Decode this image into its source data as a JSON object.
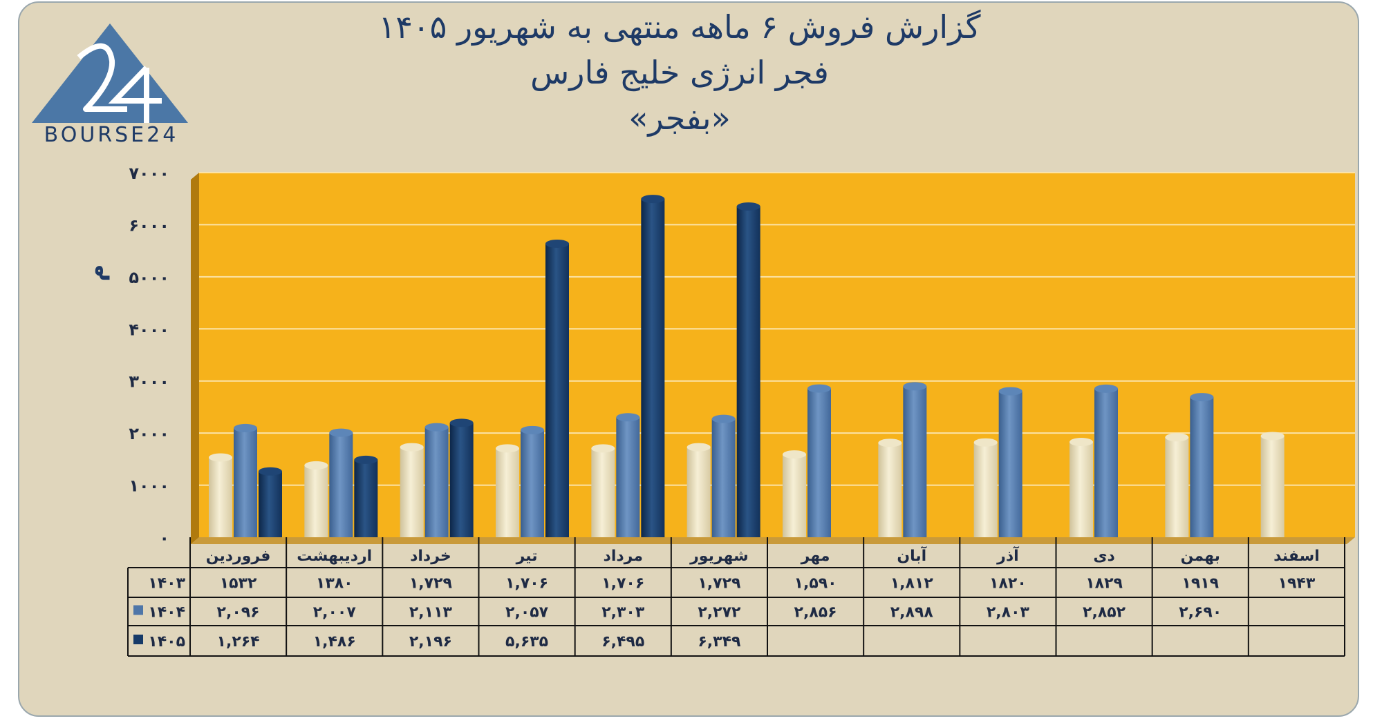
{
  "header": {
    "title_line1": "گزارش  فروش ۶ ماهه منتهی به شهریور ۱۴۰۵",
    "title_line2": "فجر انرژی خلیج فارس",
    "title_line3": "«بفجر»"
  },
  "logo": {
    "text": "BOURSE24",
    "mark": "24",
    "color": "#4b77a6"
  },
  "chart_data": {
    "type": "bar",
    "title": "گزارش  فروش ۶ ماهه منتهی به شهریور ۱۴۰۵",
    "ylabel": "م",
    "ylim": [
      0,
      7000
    ],
    "grid": true,
    "y_ticks": [
      0,
      1000,
      2000,
      3000,
      4000,
      5000,
      6000,
      7000
    ],
    "y_tick_labels": [
      "0",
      "1000",
      "2000",
      "3000",
      "4000",
      "5000",
      "6000",
      "7000"
    ],
    "categories": [
      "فروردین",
      "اردیبهشت",
      "خرداد",
      "تیر",
      "مرداد",
      "شهریور",
      "مهر",
      "آبان",
      "آذر",
      "دی",
      "بهمن",
      "اسفند"
    ],
    "series": [
      {
        "name": "۱۴۰۳",
        "color": "#e8dcb4",
        "values": [
          1532,
          1380,
          1729,
          1706,
          1706,
          1729,
          1590,
          1812,
          1820,
          1829,
          1919,
          1943
        ],
        "labels": [
          "۱۵۳۲",
          "۱۳۸۰",
          "۱,۷۲۹",
          "۱,۷۰۶",
          "۱,۷۰۶",
          "۱,۷۲۹",
          "۱,۵۹۰",
          "۱,۸۱۲",
          "۱۸۲۰",
          "۱۸۲۹",
          "۱۹۱۹",
          "۱۹۴۳"
        ]
      },
      {
        "name": "۱۴۰۴",
        "color": "#4e76a8",
        "values": [
          2096,
          2007,
          2113,
          2057,
          2303,
          2272,
          2856,
          2898,
          2803,
          2852,
          2690,
          null
        ],
        "labels": [
          "۲,۰۹۶",
          "۲,۰۰۷",
          "۲,۱۱۳",
          "۲,۰۵۷",
          "۲,۳۰۳",
          "۲,۲۷۲",
          "۲,۸۵۶",
          "۲,۸۹۸",
          "۲,۸۰۳",
          "۲,۸۵۲",
          "۲,۶۹۰",
          ""
        ]
      },
      {
        "name": "۱۴۰۵",
        "color": "#163a68",
        "values": [
          1264,
          1486,
          2196,
          5635,
          6495,
          6349,
          null,
          null,
          null,
          null,
          null,
          null
        ],
        "labels": [
          "۱,۲۶۴",
          "۱,۴۸۶",
          "۲,۱۹۶",
          "۵,۶۳۵",
          "۶,۴۹۵",
          "۶,۳۴۹",
          "",
          "",
          "",
          "",
          "",
          ""
        ]
      }
    ],
    "plot_background": "#f6b21b"
  }
}
